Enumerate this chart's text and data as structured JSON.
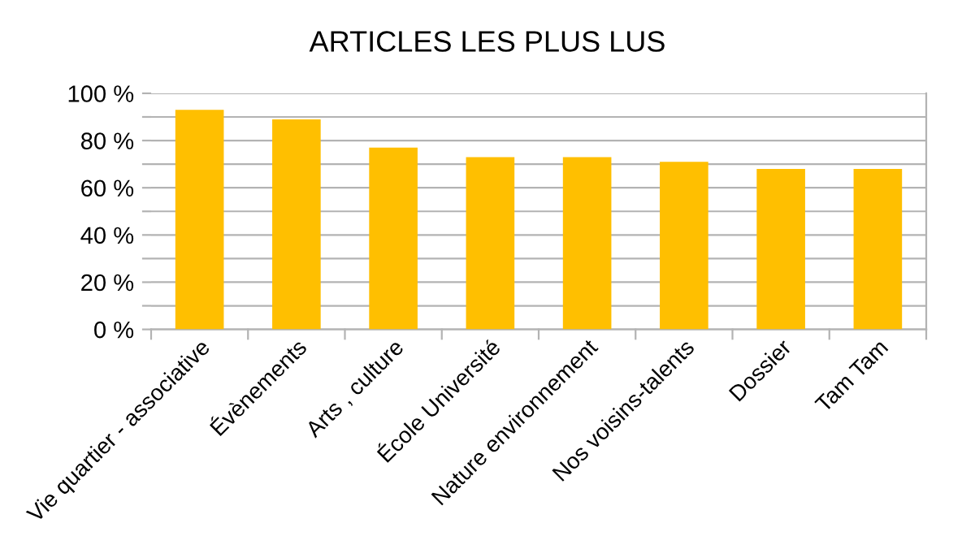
{
  "chart_data": {
    "type": "bar",
    "title": "ARTICLES LES PLUS LUS",
    "categories": [
      "Vie quartier - associative",
      "Évènements",
      "Arts , culture",
      "École Université",
      "Nature environnement",
      "Nos voisins-talents",
      "Dossier",
      "Tam Tam"
    ],
    "values": [
      93,
      89,
      77,
      73,
      73,
      71,
      68,
      68
    ],
    "color": "#ffbf00",
    "ylim": [
      0,
      100
    ],
    "yticks": [
      {
        "value": 0,
        "label": "0 %"
      },
      {
        "value": 10,
        "label": null
      },
      {
        "value": 20,
        "label": "20 %"
      },
      {
        "value": 30,
        "label": null
      },
      {
        "value": 40,
        "label": "40 %"
      },
      {
        "value": 50,
        "label": null
      },
      {
        "value": 60,
        "label": "60 %"
      },
      {
        "value": 70,
        "label": null
      },
      {
        "value": 80,
        "label": "80 %"
      },
      {
        "value": 90,
        "label": null
      },
      {
        "value": 100,
        "label": "100 %"
      }
    ],
    "grid": "y",
    "legend": false
  }
}
